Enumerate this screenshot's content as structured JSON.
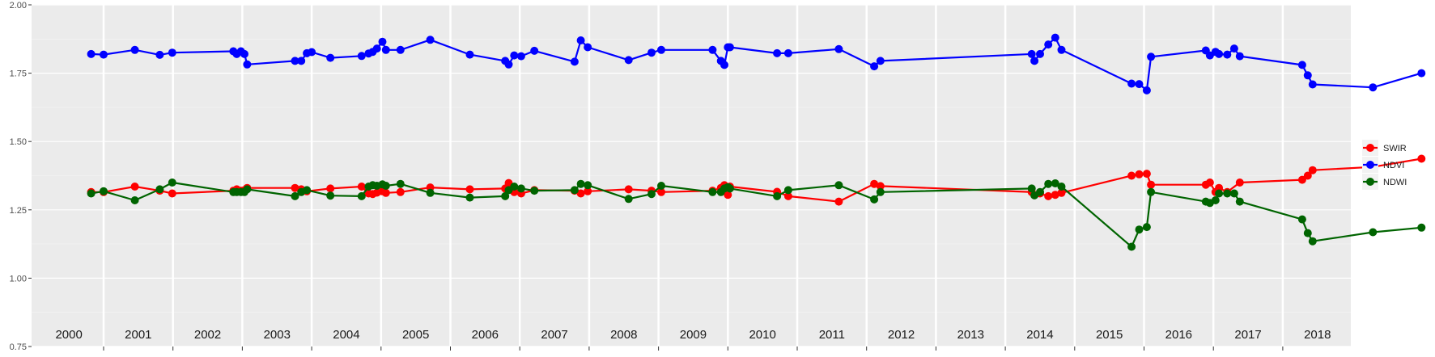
{
  "chart_data": {
    "type": "line",
    "title": "",
    "xlabel": "",
    "ylabel": "",
    "ylim": [
      0.75,
      2.0
    ],
    "yticks": [
      "0.75",
      "1.00",
      "1.25",
      "1.50",
      "1.75",
      "2.00"
    ],
    "xlim": [
      1999.5,
      2018.96
    ],
    "year_labels": [
      "2000",
      "2001",
      "2002",
      "2003",
      "2004",
      "2005",
      "2006",
      "2007",
      "2008",
      "2009",
      "2010",
      "2011",
      "2012",
      "2013",
      "2014",
      "2015",
      "2016",
      "2017",
      "2018"
    ],
    "grid": true,
    "legend_position": "right",
    "series": [
      {
        "name": "SWIR",
        "color": "#ff0000",
        "points": [
          [
            2000.82,
            1.315
          ],
          [
            2001.0,
            1.315
          ],
          [
            2001.45,
            1.335
          ],
          [
            2001.81,
            1.32
          ],
          [
            2001.99,
            1.31
          ],
          [
            2002.87,
            1.32
          ],
          [
            2002.92,
            1.325
          ],
          [
            2002.98,
            1.32
          ],
          [
            2003.03,
            1.322
          ],
          [
            2003.07,
            1.33
          ],
          [
            2003.76,
            1.33
          ],
          [
            2003.85,
            1.325
          ],
          [
            2003.93,
            1.318
          ],
          [
            2004.27,
            1.328
          ],
          [
            2004.72,
            1.335
          ],
          [
            2004.82,
            1.31
          ],
          [
            2004.88,
            1.308
          ],
          [
            2004.94,
            1.313
          ],
          [
            2005.02,
            1.318
          ],
          [
            2005.07,
            1.312
          ],
          [
            2005.28,
            1.315
          ],
          [
            2005.71,
            1.332
          ],
          [
            2006.28,
            1.325
          ],
          [
            2006.79,
            1.328
          ],
          [
            2006.84,
            1.348
          ],
          [
            2006.92,
            1.315
          ],
          [
            2007.02,
            1.31
          ],
          [
            2007.21,
            1.322
          ],
          [
            2007.79,
            1.32
          ],
          [
            2007.88,
            1.31
          ],
          [
            2007.98,
            1.318
          ],
          [
            2008.57,
            1.325
          ],
          [
            2008.9,
            1.32
          ],
          [
            2009.04,
            1.315
          ],
          [
            2009.78,
            1.32
          ],
          [
            2009.9,
            1.33
          ],
          [
            2009.95,
            1.34
          ],
          [
            2010.0,
            1.305
          ],
          [
            2010.03,
            1.335
          ],
          [
            2010.71,
            1.316
          ],
          [
            2010.87,
            1.3
          ],
          [
            2011.6,
            1.28
          ],
          [
            2012.11,
            1.345
          ],
          [
            2012.2,
            1.337
          ],
          [
            2014.38,
            1.315
          ],
          [
            2014.5,
            1.31
          ],
          [
            2014.62,
            1.3
          ],
          [
            2014.72,
            1.305
          ],
          [
            2014.81,
            1.312
          ],
          [
            2015.82,
            1.375
          ],
          [
            2015.93,
            1.38
          ],
          [
            2016.04,
            1.382
          ],
          [
            2016.1,
            1.342
          ],
          [
            2016.89,
            1.342
          ],
          [
            2016.95,
            1.35
          ],
          [
            2017.03,
            1.315
          ],
          [
            2017.08,
            1.33
          ],
          [
            2017.2,
            1.315
          ],
          [
            2017.38,
            1.35
          ],
          [
            2018.28,
            1.36
          ],
          [
            2018.36,
            1.375
          ],
          [
            2018.43,
            1.395
          ],
          [
            2019.3,
            1.407
          ],
          [
            2020.0,
            1.437
          ]
        ]
      },
      {
        "name": "NDVI",
        "color": "#0000ff",
        "points": [
          [
            2000.82,
            1.82
          ],
          [
            2001.0,
            1.818
          ],
          [
            2001.45,
            1.835
          ],
          [
            2001.81,
            1.817
          ],
          [
            2001.99,
            1.825
          ],
          [
            2002.87,
            1.83
          ],
          [
            2002.92,
            1.82
          ],
          [
            2002.98,
            1.83
          ],
          [
            2003.03,
            1.82
          ],
          [
            2003.07,
            1.782
          ],
          [
            2003.76,
            1.795
          ],
          [
            2003.85,
            1.795
          ],
          [
            2003.93,
            1.823
          ],
          [
            2004.0,
            1.827
          ],
          [
            2004.27,
            1.806
          ],
          [
            2004.72,
            1.813
          ],
          [
            2004.82,
            1.822
          ],
          [
            2004.88,
            1.828
          ],
          [
            2004.94,
            1.84
          ],
          [
            2005.02,
            1.865
          ],
          [
            2005.07,
            1.835
          ],
          [
            2005.28,
            1.835
          ],
          [
            2005.71,
            1.872
          ],
          [
            2006.28,
            1.818
          ],
          [
            2006.79,
            1.795
          ],
          [
            2006.84,
            1.782
          ],
          [
            2006.92,
            1.815
          ],
          [
            2007.02,
            1.812
          ],
          [
            2007.21,
            1.832
          ],
          [
            2007.79,
            1.792
          ],
          [
            2007.88,
            1.87
          ],
          [
            2007.98,
            1.845
          ],
          [
            2008.57,
            1.798
          ],
          [
            2008.9,
            1.825
          ],
          [
            2009.04,
            1.835
          ],
          [
            2009.78,
            1.835
          ],
          [
            2009.9,
            1.795
          ],
          [
            2009.95,
            1.78
          ],
          [
            2010.0,
            1.845
          ],
          [
            2010.03,
            1.845
          ],
          [
            2010.71,
            1.823
          ],
          [
            2010.87,
            1.823
          ],
          [
            2011.6,
            1.838
          ],
          [
            2012.11,
            1.775
          ],
          [
            2012.2,
            1.795
          ],
          [
            2014.38,
            1.82
          ],
          [
            2014.42,
            1.795
          ],
          [
            2014.5,
            1.82
          ],
          [
            2014.62,
            1.855
          ],
          [
            2014.72,
            1.88
          ],
          [
            2014.81,
            1.835
          ],
          [
            2015.82,
            1.712
          ],
          [
            2015.93,
            1.71
          ],
          [
            2016.04,
            1.687
          ],
          [
            2016.1,
            1.81
          ],
          [
            2016.89,
            1.833
          ],
          [
            2016.95,
            1.815
          ],
          [
            2017.03,
            1.828
          ],
          [
            2017.08,
            1.82
          ],
          [
            2017.2,
            1.818
          ],
          [
            2017.3,
            1.84
          ],
          [
            2017.38,
            1.812
          ],
          [
            2018.28,
            1.78
          ],
          [
            2018.36,
            1.742
          ],
          [
            2018.43,
            1.709
          ],
          [
            2019.3,
            1.698
          ],
          [
            2020.0,
            1.75
          ]
        ]
      },
      {
        "name": "NDWI",
        "color": "#006400",
        "points": [
          [
            2000.82,
            1.31
          ],
          [
            2001.0,
            1.318
          ],
          [
            2001.45,
            1.285
          ],
          [
            2001.81,
            1.325
          ],
          [
            2001.99,
            1.35
          ],
          [
            2002.87,
            1.315
          ],
          [
            2002.92,
            1.315
          ],
          [
            2002.98,
            1.315
          ],
          [
            2003.03,
            1.315
          ],
          [
            2003.07,
            1.325
          ],
          [
            2003.76,
            1.3
          ],
          [
            2003.85,
            1.315
          ],
          [
            2003.93,
            1.322
          ],
          [
            2004.27,
            1.302
          ],
          [
            2004.72,
            1.3
          ],
          [
            2004.82,
            1.335
          ],
          [
            2004.88,
            1.34
          ],
          [
            2004.94,
            1.338
          ],
          [
            2005.02,
            1.343
          ],
          [
            2005.07,
            1.338
          ],
          [
            2005.28,
            1.345
          ],
          [
            2005.71,
            1.312
          ],
          [
            2006.28,
            1.295
          ],
          [
            2006.79,
            1.3
          ],
          [
            2006.84,
            1.322
          ],
          [
            2006.92,
            1.335
          ],
          [
            2007.02,
            1.328
          ],
          [
            2007.21,
            1.32
          ],
          [
            2007.79,
            1.322
          ],
          [
            2007.88,
            1.345
          ],
          [
            2007.98,
            1.34
          ],
          [
            2008.57,
            1.29
          ],
          [
            2008.9,
            1.308
          ],
          [
            2009.04,
            1.338
          ],
          [
            2009.78,
            1.315
          ],
          [
            2009.9,
            1.315
          ],
          [
            2009.95,
            1.328
          ],
          [
            2010.0,
            1.333
          ],
          [
            2010.03,
            1.328
          ],
          [
            2010.71,
            1.3
          ],
          [
            2010.87,
            1.322
          ],
          [
            2011.6,
            1.34
          ],
          [
            2012.11,
            1.288
          ],
          [
            2012.2,
            1.315
          ],
          [
            2014.38,
            1.328
          ],
          [
            2014.42,
            1.303
          ],
          [
            2014.5,
            1.315
          ],
          [
            2014.62,
            1.345
          ],
          [
            2014.72,
            1.347
          ],
          [
            2014.81,
            1.335
          ],
          [
            2015.82,
            1.115
          ],
          [
            2015.93,
            1.178
          ],
          [
            2016.04,
            1.187
          ],
          [
            2016.1,
            1.315
          ],
          [
            2016.89,
            1.28
          ],
          [
            2016.95,
            1.275
          ],
          [
            2017.03,
            1.285
          ],
          [
            2017.08,
            1.31
          ],
          [
            2017.2,
            1.31
          ],
          [
            2017.3,
            1.31
          ],
          [
            2017.38,
            1.28
          ],
          [
            2018.28,
            1.215
          ],
          [
            2018.36,
            1.165
          ],
          [
            2018.43,
            1.135
          ],
          [
            2019.3,
            1.168
          ],
          [
            2020.0,
            1.185
          ]
        ]
      }
    ]
  }
}
